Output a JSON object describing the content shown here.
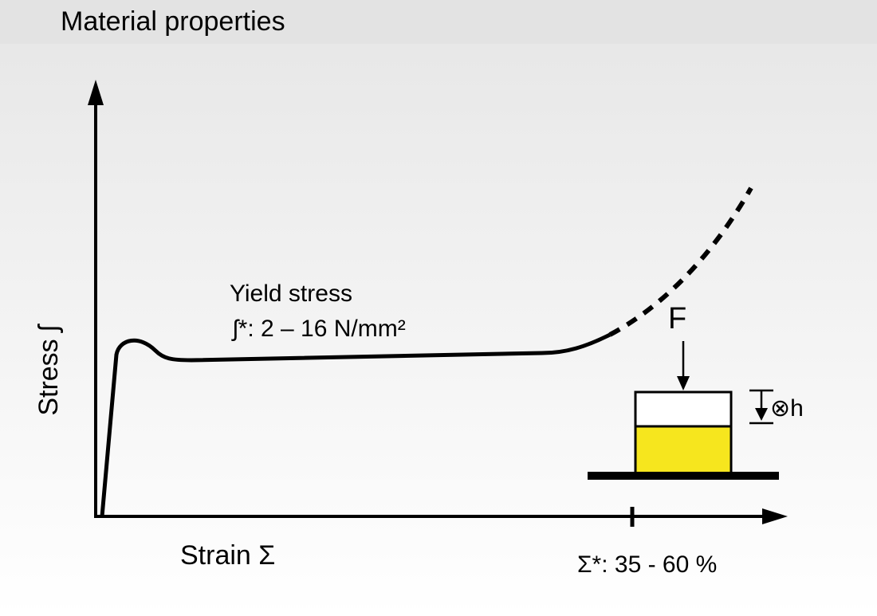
{
  "header": {
    "title": "Material properties"
  },
  "diagram": {
    "y_axis_label": "Stress ʃ",
    "x_axis_label": "Strain Σ",
    "annotation": {
      "title": "Yield stress",
      "range": "ʃ*: 2 – 16 N/mm²"
    },
    "force_label": "F",
    "height_label": "⊗h",
    "strain_range": "Σ*: 35 - 60 %"
  }
}
